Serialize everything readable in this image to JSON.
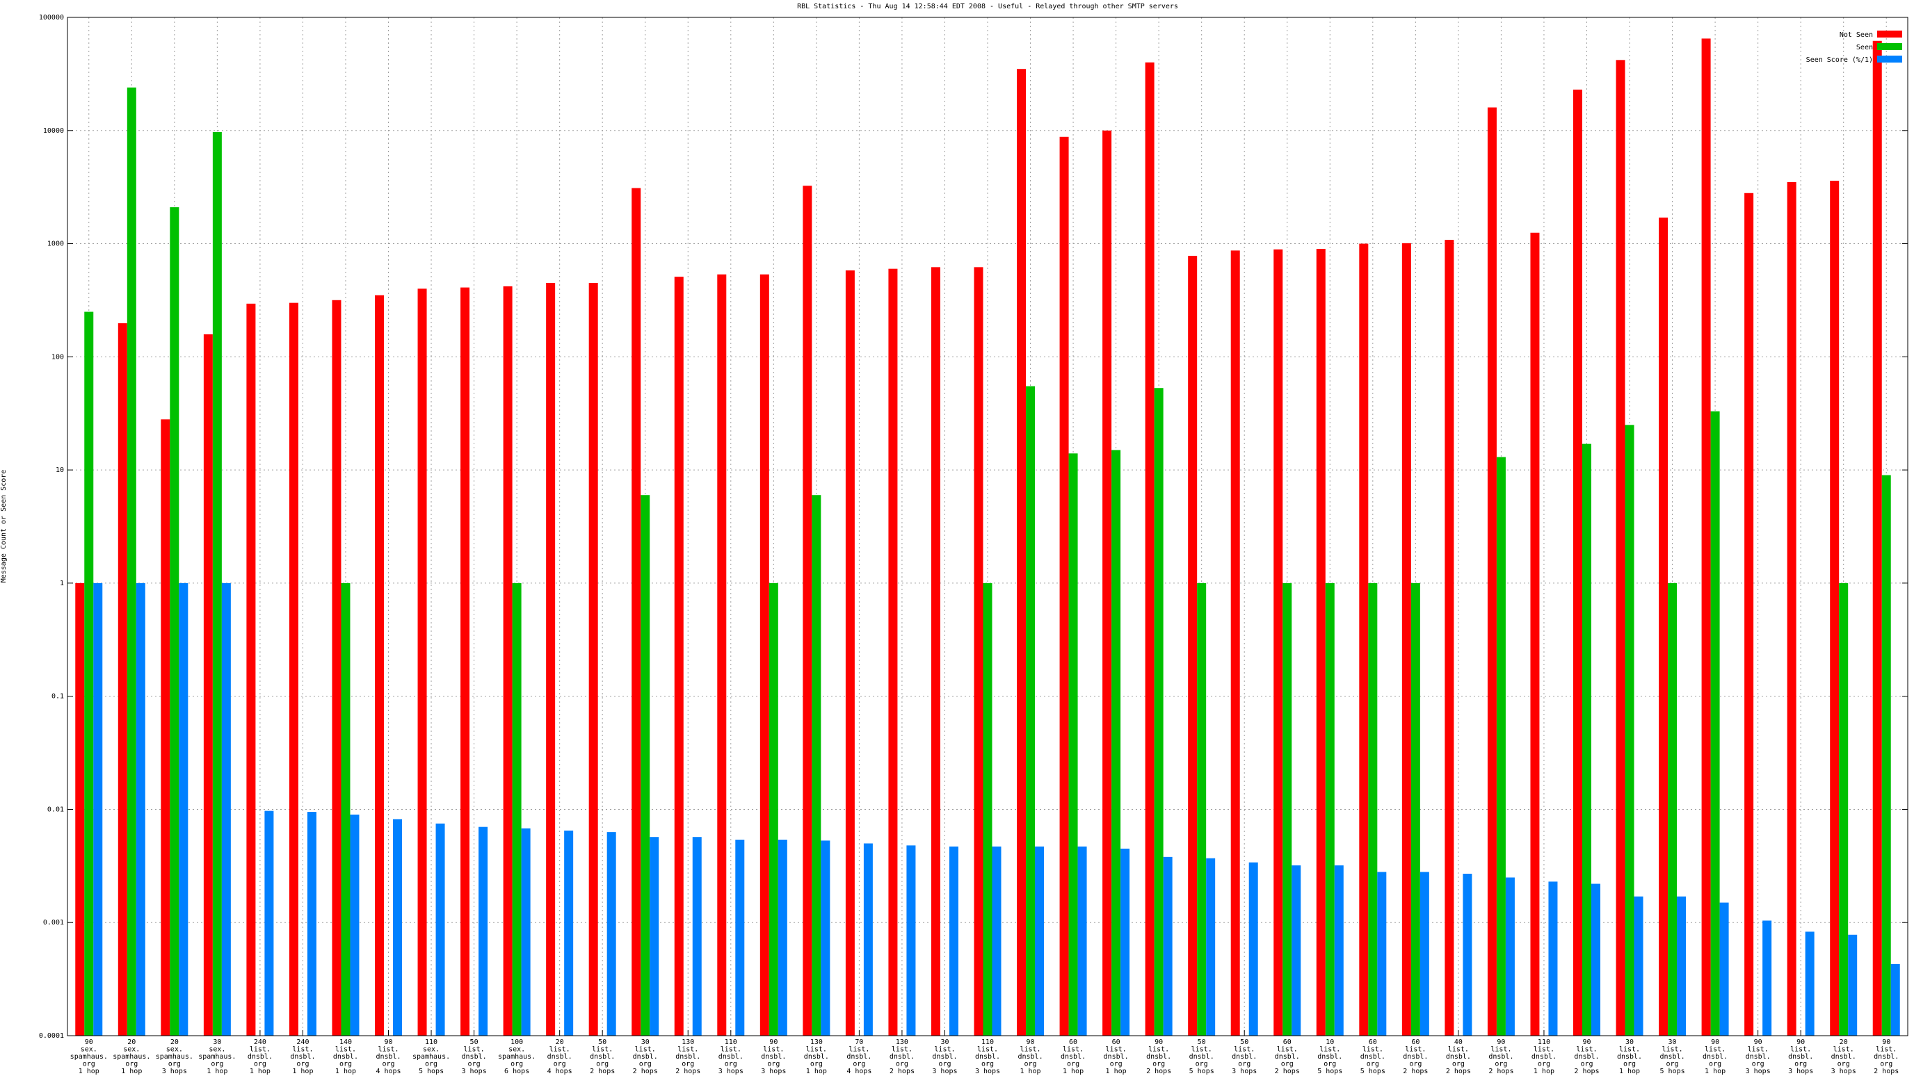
{
  "chart_data": {
    "type": "bar",
    "title": "RBL Statistics - Thu Aug 14 12:58:44 EDT 2008 - Useful - Relayed through other SMTP servers",
    "y_label": "Message Count or Seen Score",
    "log_scale": true,
    "grid": true,
    "legend": "top-right",
    "ylim": [
      0.0001,
      100000
    ],
    "yticks": [
      0.0001,
      0.001,
      0.01,
      0.1,
      1,
      10,
      100,
      1000,
      10000,
      100000
    ],
    "categories": [
      [
        "90",
        "sex.",
        "spamhaus.",
        "org",
        "1 hop"
      ],
      [
        "20",
        "sex.",
        "spamhaus.",
        "org",
        "1 hop"
      ],
      [
        "20",
        "sex.",
        "spamhaus.",
        "org",
        "3 hops"
      ],
      [
        "30",
        "sex.",
        "spamhaus.",
        "org",
        "1 hop"
      ],
      [
        "240",
        "list.",
        "dnsbl.",
        "org",
        "1 hop"
      ],
      [
        "240",
        "list.",
        "dnsbl.",
        "org",
        "1 hop"
      ],
      [
        "140",
        "list.",
        "dnsbl.",
        "org",
        "1 hop"
      ],
      [
        "90",
        "list.",
        "dnsbl.",
        "org",
        "4 hops"
      ],
      [
        "110",
        "sex.",
        "spamhaus.",
        "org",
        "5 hops"
      ],
      [
        "50",
        "list.",
        "dnsbl.",
        "org",
        "3 hops"
      ],
      [
        "100",
        "sex.",
        "spamhaus.",
        "org",
        "6 hops"
      ],
      [
        "20",
        "list.",
        "dnsbl.",
        "org",
        "4 hops"
      ],
      [
        "50",
        "list.",
        "dnsbl.",
        "org",
        "2 hops"
      ],
      [
        "30",
        "list.",
        "dnsbl.",
        "org",
        "2 hops"
      ],
      [
        "130",
        "list.",
        "dnsbl.",
        "org",
        "2 hops"
      ],
      [
        "110",
        "list.",
        "dnsbl.",
        "org",
        "3 hops"
      ],
      [
        "90",
        "list.",
        "dnsbl.",
        "org",
        "3 hops"
      ],
      [
        "130",
        "list.",
        "dnsbl.",
        "org",
        "1 hop"
      ],
      [
        "70",
        "list.",
        "dnsbl.",
        "org",
        "4 hops"
      ],
      [
        "130",
        "list.",
        "dnsbl.",
        "org",
        "2 hops"
      ],
      [
        "30",
        "list.",
        "dnsbl.",
        "org",
        "3 hops"
      ],
      [
        "110",
        "list.",
        "dnsbl.",
        "org",
        "3 hops"
      ],
      [
        "90",
        "list.",
        "dnsbl.",
        "org",
        "1 hop"
      ],
      [
        "60",
        "list.",
        "dnsbl.",
        "org",
        "1 hop"
      ],
      [
        "60",
        "list.",
        "dnsbl.",
        "org",
        "1 hop"
      ],
      [
        "90",
        "list.",
        "dnsbl.",
        "org",
        "2 hops"
      ],
      [
        "50",
        "list.",
        "dnsbl.",
        "org",
        "5 hops"
      ],
      [
        "50",
        "list.",
        "dnsbl.",
        "org",
        "3 hops"
      ],
      [
        "60",
        "list.",
        "dnsbl.",
        "org",
        "2 hops"
      ],
      [
        "10",
        "list.",
        "dnsbl.",
        "org",
        "5 hops"
      ],
      [
        "60",
        "list.",
        "dnsbl.",
        "org",
        "5 hops"
      ],
      [
        "60",
        "list.",
        "dnsbl.",
        "org",
        "2 hops"
      ],
      [
        "40",
        "list.",
        "dnsbl.",
        "org",
        "2 hops"
      ],
      [
        "90",
        "list.",
        "dnsbl.",
        "org",
        "2 hops"
      ],
      [
        "110",
        "list.",
        "dnsbl.",
        "org",
        "1 hop"
      ],
      [
        "90",
        "list.",
        "dnsbl.",
        "org",
        "2 hops"
      ],
      [
        "30",
        "list.",
        "dnsbl.",
        "org",
        "1 hop"
      ],
      [
        "30",
        "list.",
        "dnsbl.",
        "org",
        "5 hops"
      ],
      [
        "90",
        "list.",
        "dnsbl.",
        "org",
        "1 hop"
      ],
      [
        "90",
        "list.",
        "dnsbl.",
        "org",
        "3 hops"
      ],
      [
        "90",
        "list.",
        "dnsbl.",
        "org",
        "3 hops"
      ],
      [
        "20",
        "list.",
        "dnsbl.",
        "org",
        "3 hops"
      ],
      [
        "90",
        "list.",
        "dnsbl.",
        "org",
        "2 hops"
      ]
    ],
    "series": [
      {
        "name": "Not Seen",
        "color": "#ff0000",
        "values": [
          1,
          198,
          28,
          158,
          295,
          300,
          317,
          350,
          400,
          410,
          420,
          450,
          450,
          3100,
          510,
          535,
          535,
          3250,
          580,
          600,
          620,
          620,
          35000,
          8800,
          10000,
          40000,
          780,
          870,
          890,
          900,
          1000,
          1010,
          1080,
          16000,
          1250,
          23000,
          42000,
          1700,
          65000,
          2800,
          3500,
          3600,
          62000
        ]
      },
      {
        "name": "Seen",
        "color": "#00c000",
        "values": [
          250,
          24000,
          2100,
          9700,
          null,
          null,
          1,
          null,
          null,
          null,
          1,
          null,
          null,
          6,
          null,
          null,
          1,
          6,
          null,
          null,
          null,
          1,
          55,
          14,
          15,
          53,
          1,
          null,
          1,
          1,
          1,
          1,
          null,
          13,
          null,
          17,
          25,
          1,
          33,
          null,
          null,
          1,
          9
        ]
      },
      {
        "name": "Seen Score (%/1)",
        "color": "#0080ff",
        "values": [
          1,
          1,
          1,
          1,
          0.0097,
          0.0095,
          0.009,
          0.0082,
          0.0075,
          0.007,
          0.0068,
          0.0065,
          0.0063,
          0.0057,
          0.0057,
          0.0054,
          0.0054,
          0.0053,
          0.005,
          0.0048,
          0.0047,
          0.0047,
          0.0047,
          0.0047,
          0.0045,
          0.0038,
          0.0037,
          0.0034,
          0.0032,
          0.0032,
          0.0028,
          0.0028,
          0.0027,
          0.0025,
          0.0023,
          0.0022,
          0.0017,
          0.0017,
          0.0015,
          0.00104,
          0.00083,
          0.00078,
          0.00043
        ]
      }
    ]
  }
}
